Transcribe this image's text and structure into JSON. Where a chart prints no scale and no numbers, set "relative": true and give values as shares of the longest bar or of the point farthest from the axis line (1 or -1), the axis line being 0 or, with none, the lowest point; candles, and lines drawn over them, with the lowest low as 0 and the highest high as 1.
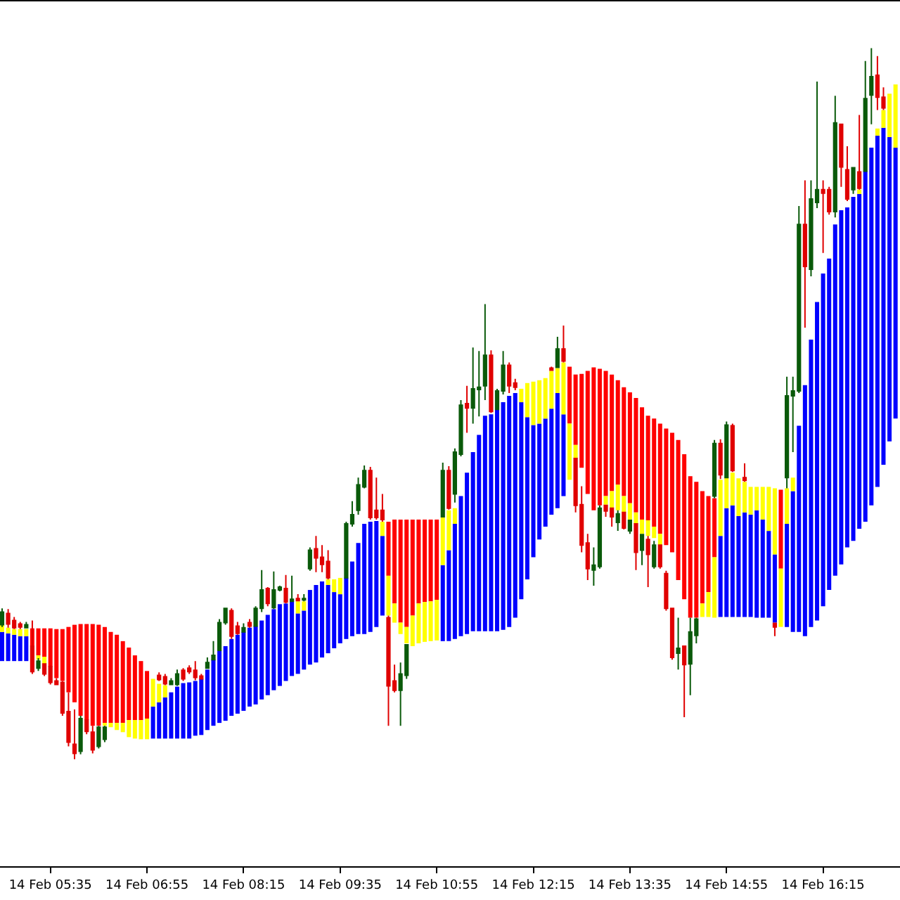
{
  "chart_data": {
    "type": "candlestick",
    "relative": true,
    "categories": [
      null,
      null,
      null,
      null,
      null,
      null,
      null,
      null,
      "14 Feb 05:35",
      null,
      null,
      null,
      null,
      null,
      null,
      null,
      null,
      null,
      null,
      null,
      null,
      null,
      null,
      null,
      "14 Feb 06:55",
      null,
      null,
      null,
      null,
      null,
      null,
      null,
      null,
      null,
      null,
      null,
      null,
      null,
      null,
      null,
      "14 Feb 08:15",
      null,
      null,
      null,
      null,
      null,
      null,
      null,
      null,
      null,
      null,
      null,
      null,
      null,
      null,
      null,
      "14 Feb 09:35",
      null,
      null,
      null,
      null,
      null,
      null,
      null,
      null,
      null,
      null,
      null,
      null,
      null,
      null,
      null,
      "14 Feb 10:55",
      null,
      null,
      null,
      null,
      null,
      null,
      null,
      null,
      null,
      null,
      null,
      null,
      null,
      null,
      null,
      "14 Feb 12:15",
      null,
      null,
      null,
      null,
      null,
      null,
      null,
      null,
      null,
      null,
      null,
      null,
      null,
      null,
      null,
      "14 Feb 13:35",
      null,
      null,
      null,
      null,
      null,
      null,
      null,
      null,
      null,
      null,
      null,
      null,
      null,
      null,
      null,
      "14 Feb 14:55",
      null,
      null,
      null,
      null,
      null,
      null,
      null,
      null,
      null,
      null,
      null,
      null,
      null,
      null,
      null,
      "14 Feb 16:15",
      null,
      null,
      null,
      null,
      null,
      null,
      null,
      null,
      null,
      null,
      null,
      null
    ],
    "series": [
      {
        "type": "bar",
        "colors": [
          "#0000ff",
          "#0000ff",
          "#0000ff",
          "#0000ff",
          "#0000ff",
          "#ff0000",
          "#ff0000",
          "#ff0000",
          "#ff0000",
          "#ff0000",
          "#ff0000",
          "#ff0000",
          "#ff0000",
          "#ff0000",
          "#ff0000",
          "#ff0000",
          "#ff0000",
          "#ff0000",
          "#ff0000",
          "#ff0000",
          "#ff0000",
          "#ff0000",
          "#ff0000",
          "#ff0000",
          "#ff0000",
          "#0000ff",
          "#0000ff",
          "#0000ff",
          "#0000ff",
          "#0000ff",
          "#0000ff",
          "#0000ff",
          "#0000ff",
          "#0000ff",
          "#0000ff",
          "#0000ff",
          "#0000ff",
          "#0000ff",
          "#0000ff",
          "#0000ff",
          "#0000ff",
          "#0000ff",
          "#0000ff",
          "#0000ff",
          "#0000ff",
          "#0000ff",
          "#0000ff",
          "#0000ff",
          "#0000ff",
          "#0000ff",
          "#0000ff",
          "#0000ff",
          "#0000ff",
          "#0000ff",
          "#0000ff",
          "#0000ff",
          "#0000ff",
          "#0000ff",
          "#0000ff",
          "#0000ff",
          "#0000ff",
          "#0000ff",
          "#0000ff",
          "#0000ff",
          "#ff0000",
          "#ff0000",
          "#ff0000",
          "#ff0000",
          "#ff0000",
          "#ff0000",
          "#ff0000",
          "#ff0000",
          "#ff0000",
          "#0000ff",
          "#0000ff",
          "#0000ff",
          "#0000ff",
          "#0000ff",
          "#0000ff",
          "#0000ff",
          "#0000ff",
          "#0000ff",
          "#0000ff",
          "#0000ff",
          "#0000ff",
          "#0000ff",
          "#0000ff",
          "#0000ff",
          "#0000ff",
          "#0000ff",
          "#0000ff",
          "#0000ff",
          "#0000ff",
          "#0000ff",
          "#ff0000",
          "#ff0000",
          "#ff0000",
          "#ff0000",
          "#ff0000",
          "#ff0000",
          "#ff0000",
          "#ff0000",
          "#ff0000",
          "#ff0000",
          "#ff0000",
          "#ff0000",
          "#ff0000",
          "#ff0000",
          "#ff0000",
          "#ff0000",
          "#ff0000",
          "#ff0000",
          "#ff0000",
          "#ff0000",
          "#ff0000",
          "#ff0000",
          "#ff0000",
          "#ff0000",
          "#ff0000",
          "#0000ff",
          "#0000ff",
          "#0000ff",
          "#0000ff",
          "#0000ff",
          "#0000ff",
          "#0000ff",
          "#0000ff",
          "#0000ff",
          "#0000ff",
          "#ff0000",
          "#0000ff",
          "#0000ff",
          "#0000ff",
          "#0000ff",
          "#0000ff",
          "#0000ff",
          "#0000ff",
          "#0000ff",
          "#0000ff",
          "#0000ff",
          "#0000ff",
          "#0000ff",
          "#0000ff",
          "#0000ff",
          "#0000ff",
          "#0000ff",
          "#0000ff",
          "#0000ff",
          "#0000ff"
        ],
        "base": [
          0.138,
          0.138,
          0.138,
          0.138,
          0.138,
          0.159,
          0.146,
          0.144,
          0.13,
          0.114,
          0.11,
          0.094,
          0.08,
          0.061,
          0.055,
          0.047,
          0.047,
          0.051,
          0.051,
          0.051,
          0.051,
          0.055,
          0.055,
          0.055,
          0.057,
          0.029,
          0.029,
          0.029,
          0.029,
          0.029,
          0.029,
          0.029,
          0.033,
          0.034,
          0.041,
          0.047,
          0.051,
          0.054,
          0.061,
          0.064,
          0.068,
          0.074,
          0.077,
          0.084,
          0.09,
          0.097,
          0.103,
          0.11,
          0.117,
          0.12,
          0.126,
          0.133,
          0.136,
          0.143,
          0.149,
          0.156,
          0.163,
          0.169,
          0.173,
          0.176,
          0.176,
          0.179,
          0.186,
          0.202,
          0.258,
          0.219,
          0.192,
          0.186,
          0.202,
          0.219,
          0.221,
          0.222,
          0.224,
          0.166,
          0.166,
          0.169,
          0.173,
          0.176,
          0.18,
          0.18,
          0.18,
          0.18,
          0.18,
          0.182,
          0.186,
          0.199,
          0.225,
          0.253,
          0.284,
          0.309,
          0.327,
          0.344,
          0.353,
          0.37,
          0.472,
          0.442,
          0.41,
          0.373,
          0.35,
          0.357,
          0.37,
          0.377,
          0.386,
          0.37,
          0.36,
          0.347,
          0.337,
          0.336,
          0.327,
          0.317,
          0.301,
          0.291,
          0.252,
          0.225,
          0.199,
          0.199,
          0.219,
          0.235,
          0.284,
          0.2,
          0.2,
          0.2,
          0.2,
          0.2,
          0.2,
          0.199,
          0.199,
          0.199,
          0.192,
          0.268,
          0.186,
          0.179,
          0.179,
          0.173,
          0.186,
          0.195,
          0.215,
          0.238,
          0.258,
          0.274,
          0.298,
          0.307,
          0.324,
          0.334,
          0.357,
          0.383,
          0.414,
          0.447,
          0.479
        ],
        "values": [
          0.041,
          0.039,
          0.037,
          0.035,
          0.035,
          0.025,
          0.038,
          0.04,
          0.054,
          0.069,
          0.073,
          0.092,
          0.109,
          0.129,
          0.135,
          0.143,
          0.142,
          0.135,
          0.128,
          0.124,
          0.115,
          0.102,
          0.091,
          0.083,
          0.067,
          0.045,
          0.051,
          0.058,
          0.065,
          0.073,
          0.078,
          0.079,
          0.077,
          0.079,
          0.085,
          0.093,
          0.102,
          0.105,
          0.108,
          0.111,
          0.111,
          0.111,
          0.11,
          0.111,
          0.113,
          0.114,
          0.115,
          0.109,
          0.105,
          0.085,
          0.083,
          0.105,
          0.109,
          0.107,
          0.096,
          0.079,
          0.069,
          0.086,
          0.105,
          0.128,
          0.155,
          0.155,
          0.149,
          0.112,
          0.076,
          0.118,
          0.145,
          0.151,
          0.135,
          0.118,
          0.116,
          0.115,
          0.113,
          0.107,
          0.128,
          0.162,
          0.197,
          0.227,
          0.252,
          0.276,
          0.303,
          0.305,
          0.312,
          0.32,
          0.325,
          0.316,
          0.277,
          0.228,
          0.186,
          0.163,
          0.152,
          0.149,
          0.162,
          0.115,
          0.08,
          0.099,
          0.132,
          0.173,
          0.201,
          0.192,
          0.176,
          0.164,
          0.147,
          0.153,
          0.156,
          0.161,
          0.158,
          0.147,
          0.152,
          0.155,
          0.164,
          0.168,
          0.197,
          0.204,
          0.199,
          0.191,
          0.158,
          0.135,
          0.083,
          0.114,
          0.153,
          0.157,
          0.142,
          0.147,
          0.144,
          0.151,
          0.138,
          0.122,
          0.096,
          0.111,
          0.145,
          0.198,
          0.29,
          0.353,
          0.404,
          0.448,
          0.468,
          0.466,
          0.494,
          0.498,
          0.478,
          0.484,
          0.471,
          0.493,
          0.503,
          0.494,
          0.474,
          0.428,
          0.381
        ]
      },
      {
        "type": "bar",
        "color": "#ffff00",
        "base": [
          0.179,
          0.177,
          0.175,
          0.173,
          0.173,
          null,
          0.14,
          0.134,
          null,
          null,
          null,
          null,
          null,
          null,
          null,
          null,
          null,
          0.047,
          0.045,
          0.041,
          0.038,
          0.031,
          0.029,
          0.028,
          0.028,
          0.074,
          0.08,
          0.087,
          null,
          null,
          null,
          null,
          null,
          null,
          null,
          null,
          null,
          null,
          null,
          null,
          null,
          null,
          null,
          null,
          null,
          null,
          null,
          null,
          null,
          0.205,
          0.209,
          null,
          null,
          null,
          0.245,
          0.235,
          0.232,
          null,
          null,
          null,
          null,
          null,
          null,
          0.314,
          0.202,
          0.192,
          0.176,
          0.163,
          0.159,
          0.163,
          0.165,
          0.166,
          0.167,
          0.273,
          0.294,
          0.331,
          null,
          null,
          null,
          null,
          null,
          null,
          null,
          null,
          null,
          null,
          0.502,
          0.481,
          0.47,
          0.472,
          0.479,
          0.493,
          0.515,
          0.485,
          0.393,
          0.423,
          null,
          null,
          null,
          null,
          0.358,
          0.353,
          0.35,
          0.347,
          0.337,
          0.331,
          0.317,
          0.314,
          0.311,
          0.301,
          null,
          null,
          null,
          null,
          null,
          null,
          0.2,
          0.2,
          0.199,
          0.314,
          0.353,
          0.357,
          0.342,
          0.347,
          0.344,
          0.35,
          0.337,
          0.321,
          0.288,
          0.186,
          0.331,
          0.377,
          null,
          null,
          null,
          null,
          null,
          null,
          null,
          null,
          null,
          null,
          0.795,
          null,
          null,
          0.877,
          0.888,
          0.875,
          0.86
        ],
        "values": [
          0.012,
          0.008,
          0.008,
          0.01,
          0.01,
          null,
          0.006,
          0.01,
          null,
          null,
          null,
          null,
          null,
          null,
          null,
          null,
          null,
          0.004,
          0.006,
          0.01,
          0.013,
          0.024,
          0.026,
          0.027,
          0.029,
          0.039,
          0.026,
          0.017,
          null,
          null,
          null,
          null,
          null,
          null,
          null,
          null,
          null,
          null,
          null,
          null,
          null,
          null,
          null,
          null,
          null,
          null,
          null,
          null,
          null,
          0.017,
          0.013,
          null,
          null,
          null,
          0.008,
          0.018,
          0.023,
          null,
          null,
          null,
          null,
          null,
          null,
          0.02,
          0.056,
          0.027,
          0.016,
          0.023,
          0.043,
          0.056,
          0.056,
          0.056,
          0.057,
          0.067,
          0.056,
          0.022,
          null,
          null,
          null,
          null,
          null,
          null,
          null,
          null,
          null,
          null,
          0.019,
          0.048,
          0.061,
          0.061,
          0.057,
          0.053,
          0.035,
          0.073,
          0.079,
          0.019,
          null,
          null,
          null,
          null,
          0.012,
          0.024,
          0.036,
          0.023,
          0.023,
          0.016,
          0.02,
          0.022,
          0.016,
          0.016,
          null,
          null,
          null,
          null,
          null,
          null,
          0.019,
          0.035,
          0.085,
          0.079,
          0.043,
          0.046,
          0.053,
          0.043,
          0.039,
          0.033,
          0.046,
          0.062,
          0.093,
          0.082,
          0.05,
          0.019,
          null,
          null,
          null,
          null,
          null,
          null,
          null,
          null,
          null,
          null,
          0.006,
          null,
          null,
          0.01,
          0.025,
          0.061,
          0.089
        ]
      },
      {
        "colors": [
          "#0a5a0a",
          "#e00000",
          "#e00000",
          "#e00000",
          "#0a5a0a",
          "#e00000",
          "#0a5a0a",
          "#e00000",
          "#e00000",
          "#e00000",
          "#e00000",
          "#e00000",
          "#e00000",
          "#0a5a0a",
          "#e00000",
          "#e00000",
          "#0a5a0a",
          "#0a5a0a",
          null,
          null,
          null,
          null,
          null,
          null,
          null,
          null,
          "#e00000",
          "#e00000",
          "#0a5a0a",
          "#0a5a0a",
          "#e00000",
          "#e00000",
          "#e00000",
          "#e00000",
          "#0a5a0a",
          "#0a5a0a",
          "#0a5a0a",
          "#0a5a0a",
          "#e00000",
          "#e00000",
          "#0a5a0a",
          "#e00000",
          "#0a5a0a",
          "#0a5a0a",
          "#e00000",
          "#0a5a0a",
          "#0a5a0a",
          "#e00000",
          "#0a5a0a",
          "#e00000",
          "#0a5a0a",
          "#0a5a0a",
          "#e00000",
          "#e00000",
          "#e00000",
          null,
          null,
          "#0a5a0a",
          "#0a5a0a",
          "#0a5a0a",
          "#0a5a0a",
          "#e00000",
          "#e00000",
          "#e00000",
          "#e00000",
          "#e00000",
          "#0a5a0a",
          "#0a5a0a",
          null,
          null,
          null,
          null,
          null,
          "#0a5a0a",
          "#e00000",
          "#0a5a0a",
          "#0a5a0a",
          "#e00000",
          "#0a5a0a",
          "#0a5a0a",
          "#0a5a0a",
          "#e00000",
          "#0a5a0a",
          "#0a5a0a",
          "#e00000",
          "#e00000",
          null,
          null,
          null,
          null,
          null,
          "#e00000",
          "#0a5a0a",
          "#e00000",
          null,
          "#e00000",
          "#e00000",
          "#e00000",
          "#0a5a0a",
          "#0a5a0a",
          "#e00000",
          "#e00000",
          "#0a5a0a",
          "#e00000",
          "#0a5a0a",
          "#e00000",
          "#0a5a0a",
          "#e00000",
          "#0a5a0a",
          "#e00000",
          "#e00000",
          "#e00000",
          "#0a5a0a",
          "#e00000",
          "#0a5a0a",
          "#0a5a0a",
          null,
          null,
          "#0a5a0a",
          "#e00000",
          "#0a5a0a",
          "#e00000",
          null,
          "#e00000",
          null,
          null,
          null,
          null,
          "#e00000",
          null,
          "#0a5a0a",
          "#0a5a0a",
          "#0a5a0a",
          "#e00000",
          "#0a5a0a",
          "#0a5a0a",
          "#e00000",
          "#e00000",
          "#0a5a0a",
          "#e00000",
          "#e00000",
          "#0a5a0a",
          "#e00000",
          "#0a5a0a",
          "#0a5a0a",
          "#e00000",
          "#e00000",
          null,
          null
        ],
        "ohlc": [
          [
            0.189,
            0.212,
            0.186,
            0.207
          ],
          [
            0.205,
            0.211,
            0.185,
            0.19
          ],
          [
            0.195,
            0.2,
            0.183,
            0.185
          ],
          [
            0.19,
            0.193,
            0.183,
            0.186
          ],
          [
            0.185,
            0.193,
            0.184,
            0.189
          ],
          [
            0.159,
            0.195,
            0.12,
            0.123
          ],
          [
            0.128,
            0.142,
            0.124,
            0.138
          ],
          [
            0.134,
            0.134,
            0.117,
            0.12
          ],
          [
            0.13,
            0.132,
            0.105,
            0.108
          ],
          [
            0.11,
            0.114,
            0.104,
            0.105
          ],
          [
            0.108,
            0.11,
            0.061,
            0.065
          ],
          [
            0.067,
            0.094,
            0.018,
            0.024
          ],
          [
            0.021,
            0.07,
            0,
            0.008
          ],
          [
            0.011,
            0.061,
            0.007,
            0.057
          ],
          [
            0.055,
            0.055,
            0.035,
            0.039
          ],
          [
            0.038,
            0.047,
            0.008,
            0.013
          ],
          [
            0.018,
            0.047,
            0.015,
            0.045
          ],
          [
            0.028,
            0.047,
            0.024,
            0.045
          ],
          null,
          null,
          null,
          null,
          null,
          null,
          null,
          null,
          [
            0.118,
            0.122,
            0.11,
            0.112
          ],
          [
            0.116,
            0.12,
            0.104,
            0.106
          ],
          [
            0.105,
            0.114,
            0.104,
            0.11
          ],
          [
            0.105,
            0.126,
            0.103,
            0.12
          ],
          [
            0.125,
            0.128,
            0.11,
            0.113
          ],
          [
            0.128,
            0.132,
            0.12,
            0.123
          ],
          [
            0.125,
            0.138,
            0.111,
            0.115
          ],
          [
            0.117,
            0.12,
            0.112,
            0.113
          ],
          [
            0.128,
            0.143,
            0.127,
            0.136
          ],
          [
            0.14,
            0.166,
            0.14,
            0.146
          ],
          [
            0.153,
            0.197,
            0.153,
            0.192
          ],
          [
            0.192,
            0.213,
            0.189,
            0.212
          ],
          [
            0.209,
            0.212,
            0.169,
            0.173
          ],
          [
            0.187,
            0.193,
            0.175,
            0.177
          ],
          [
            0.179,
            0.191,
            0.179,
            0.185
          ],
          [
            0.192,
            0.197,
            0.185,
            0.187
          ],
          [
            0.187,
            0.215,
            0.187,
            0.212
          ],
          [
            0.212,
            0.266,
            0.207,
            0.238
          ],
          [
            0.24,
            0.242,
            0.215,
            0.219
          ],
          [
            0.213,
            0.264,
            0.211,
            0.238
          ],
          [
            0.238,
            0.244,
            0.236,
            0.242
          ],
          [
            0.24,
            0.259,
            0.219,
            0.221
          ],
          [
            0.222,
            0.258,
            0.222,
            0.225
          ],
          [
            0.226,
            0.232,
            0.222,
            0.223
          ],
          [
            0.224,
            0.232,
            0.222,
            0.226
          ],
          [
            0.268,
            0.298,
            0.265,
            0.294
          ],
          [
            0.296,
            0.314,
            0.263,
            0.283
          ],
          [
            0.284,
            0.301,
            0.263,
            0.274
          ],
          [
            0.278,
            0.294,
            0.253,
            0.255
          ],
          null,
          null,
          [
            0.255,
            0.334,
            0.255,
            0.331
          ],
          [
            0.331,
            0.363,
            0.327,
            0.344
          ],
          [
            0.35,
            0.396,
            0.344,
            0.386
          ],
          [
            0.383,
            0.413,
            0.381,
            0.406
          ],
          [
            0.406,
            0.411,
            0.337,
            0.34
          ],
          [
            0.35,
            0.396,
            0.337,
            0.34
          ],
          [
            0.35,
            0.373,
            0.334,
            0.337
          ],
          [
            0.199,
            0.202,
            0.047,
            0.103
          ],
          [
            0.11,
            0.133,
            0.094,
            0.097
          ],
          [
            0.097,
            0.136,
            0.047,
            0.12
          ],
          [
            0.118,
            0.162,
            0.113,
            0.161
          ],
          null,
          null,
          null,
          null,
          null,
          [
            0.341,
            0.417,
            0.341,
            0.406
          ],
          [
            0.406,
            0.412,
            0.351,
            0.353
          ],
          [
            0.373,
            0.437,
            0.361,
            0.432
          ],
          [
            0.429,
            0.505,
            0.426,
            0.498
          ],
          [
            0.5,
            0.525,
            0.459,
            0.494
          ],
          [
            0.494,
            0.579,
            0.472,
            0.521
          ],
          [
            0.52,
            0.574,
            0.482,
            0.523
          ],
          [
            0.525,
            0.64,
            0.505,
            0.568
          ],
          [
            0.568,
            0.575,
            0.487,
            0.489
          ],
          [
            0.492,
            0.521,
            0.492,
            0.518
          ],
          [
            0.518,
            0.574,
            0.513,
            0.554
          ],
          [
            0.554,
            0.558,
            0.515,
            0.525
          ],
          [
            0.529,
            0.535,
            0.519,
            0.523
          ],
          null,
          null,
          null,
          null,
          null,
          [
            0.55,
            0.552,
            0.546,
            0.547
          ],
          [
            0.551,
            0.594,
            0.55,
            0.577
          ],
          [
            0.577,
            0.61,
            0.558,
            0.56
          ],
          null,
          [
            0.423,
            0.423,
            0.347,
            0.357
          ],
          [
            0.358,
            0.384,
            0.291,
            0.301
          ],
          [
            0.304,
            0.317,
            0.252,
            0.268
          ],
          [
            0.266,
            0.298,
            0.244,
            0.273
          ],
          [
            0.271,
            0.357,
            0.268,
            0.353
          ],
          [
            0.357,
            0.358,
            0.341,
            0.349
          ],
          [
            0.353,
            0.353,
            0.327,
            0.341
          ],
          [
            0.333,
            0.35,
            0.321,
            0.345
          ],
          [
            0.347,
            0.347,
            0.323,
            0.325
          ],
          [
            0.321,
            0.337,
            0.317,
            0.336
          ],
          [
            0.331,
            0.331,
            0.266,
            0.291
          ],
          [
            0.294,
            0.317,
            0.273,
            0.316
          ],
          [
            0.309,
            0.314,
            0.242,
            0.288
          ],
          [
            0.271,
            0.307,
            0.268,
            0.301
          ],
          [
            0.301,
            0.301,
            0.268,
            0.271
          ],
          [
            0.261,
            0.265,
            0.209,
            0.212
          ],
          [
            0.212,
            0.212,
            0.14,
            0.143
          ],
          [
            0.149,
            0.199,
            0.126,
            0.156
          ],
          [
            0.159,
            0.159,
            0.059,
            0.133
          ],
          [
            0.134,
            0.199,
            0.09,
            0.179
          ],
          [
            0.174,
            0.199,
            0.163,
            0.197
          ],
          null,
          null,
          [
            0.37,
            0.449,
            0.367,
            0.444
          ],
          [
            0.444,
            0.45,
            0.394,
            0.4
          ],
          [
            0.396,
            0.475,
            0.396,
            0.47
          ],
          [
            0.469,
            0.472,
            0.404,
            0.406
          ],
          null,
          [
            0.396,
            0.416,
            0.39,
            0.392
          ],
          null,
          null,
          null,
          null,
          [
            0.191,
            0.192,
            0.173,
            0.186
          ],
          null,
          [
            0.396,
            0.538,
            0.381,
            0.511
          ],
          [
            0.511,
            0.538,
            0.432,
            0.518
          ],
          [
            0.518,
            0.778,
            0.515,
            0.752
          ],
          [
            0.752,
            0.814,
            0.607,
            0.693
          ],
          [
            0.689,
            0.814,
            0.679,
            0.788
          ],
          [
            0.783,
            0.953,
            0.775,
            0.801
          ],
          [
            0.801,
            0.814,
            0.712,
            0.796
          ],
          [
            0.801,
            0.805,
            0.766,
            0.77
          ],
          [
            0.77,
            0.933,
            0.762,
            0.895
          ],
          [
            0.893,
            0.893,
            0.805,
            0.833
          ],
          [
            0.829,
            0.862,
            0.785,
            0.788
          ],
          [
            0.801,
            0.832,
            0.795,
            0.832
          ],
          [
            0.826,
            0.906,
            0.801,
            0.803
          ],
          [
            0.827,
            0.982,
            0.827,
            0.929
          ],
          [
            0.934,
            1,
            0.893,
            0.96
          ],
          [
            0.962,
            0.989,
            0.913,
            0.931
          ],
          [
            0.931,
            0.945,
            0.913,
            0.916
          ],
          null,
          null
        ]
      }
    ]
  }
}
